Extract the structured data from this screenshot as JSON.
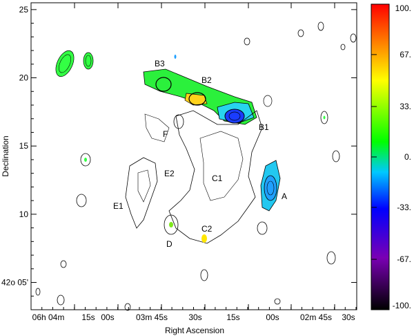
{
  "chart_data": {
    "type": "heatmap",
    "title": "",
    "xlabel": "Right Ascension",
    "ylabel": "Declination",
    "x_tick_labels": [
      "06h 04m",
      "15s",
      "00s",
      "03m 45s",
      "30s",
      "15s",
      "00s",
      "02m 45s",
      "30s"
    ],
    "y_tick_labels": [
      "42o 05'",
      "10",
      "15",
      "20",
      "25"
    ],
    "ylim_arcmin": [
      3,
      25.5
    ],
    "colorbar": {
      "ticks": [
        "100.",
        "67.",
        "33.",
        "0.",
        "-33.",
        "-67.",
        "-100."
      ],
      "range": [
        -100,
        100
      ],
      "colors": [
        "#000000",
        "#7a00b4",
        "#0000ff",
        "#00c8ff",
        "#00ff00",
        "#ffff00",
        "#ff0000"
      ]
    },
    "source_labels": [
      "B3",
      "B2",
      "B1",
      "F",
      "E2",
      "C1",
      "E1",
      "A",
      "C2",
      "D"
    ]
  }
}
